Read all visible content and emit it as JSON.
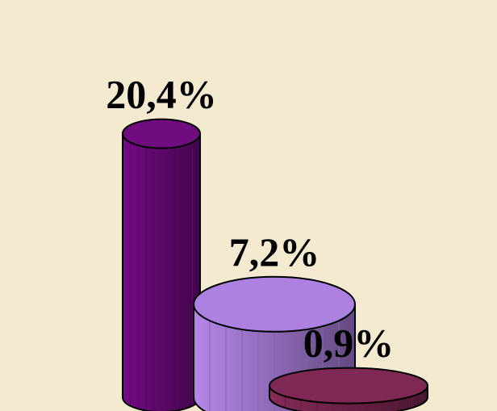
{
  "chart_data": {
    "type": "cylinder",
    "categories": [
      null,
      null,
      null
    ],
    "values": [
      20.4,
      7.2,
      0.9
    ],
    "value_labels": [
      "20,4%",
      "7,2%",
      "0,9%"
    ],
    "colors": [
      "#6b0a7a",
      "#a57bd6",
      "#7a2650"
    ]
  }
}
